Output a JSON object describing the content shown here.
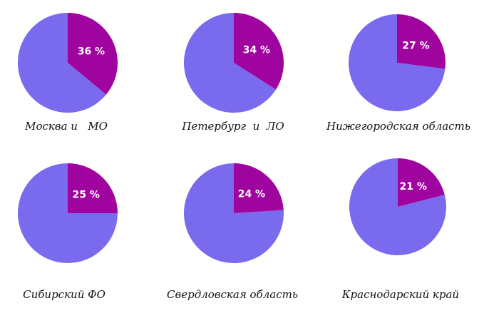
{
  "colors": {
    "share": "#a0049f",
    "rest": "#7a6aee",
    "label_text": "#ffffff"
  },
  "chart_data": [
    {
      "type": "pie",
      "title": "Москва и   МО",
      "value_label": "36 %",
      "values": [
        36,
        64
      ]
    },
    {
      "type": "pie",
      "title": "Петербург  и  ЛО",
      "value_label": "34 %",
      "values": [
        34,
        66
      ]
    },
    {
      "type": "pie",
      "title": "Нижегородская область",
      "value_label": "27 %",
      "values": [
        27,
        73
      ]
    },
    {
      "type": "pie",
      "title": "Сибирский ФО",
      "value_label": "25 %",
      "values": [
        25,
        75
      ]
    },
    {
      "type": "pie",
      "title": "Свердловская область",
      "value_label": "24 %",
      "values": [
        24,
        76
      ]
    },
    {
      "type": "pie",
      "title": "Краснодарский край",
      "value_label": "21 %",
      "values": [
        21,
        79
      ]
    }
  ]
}
